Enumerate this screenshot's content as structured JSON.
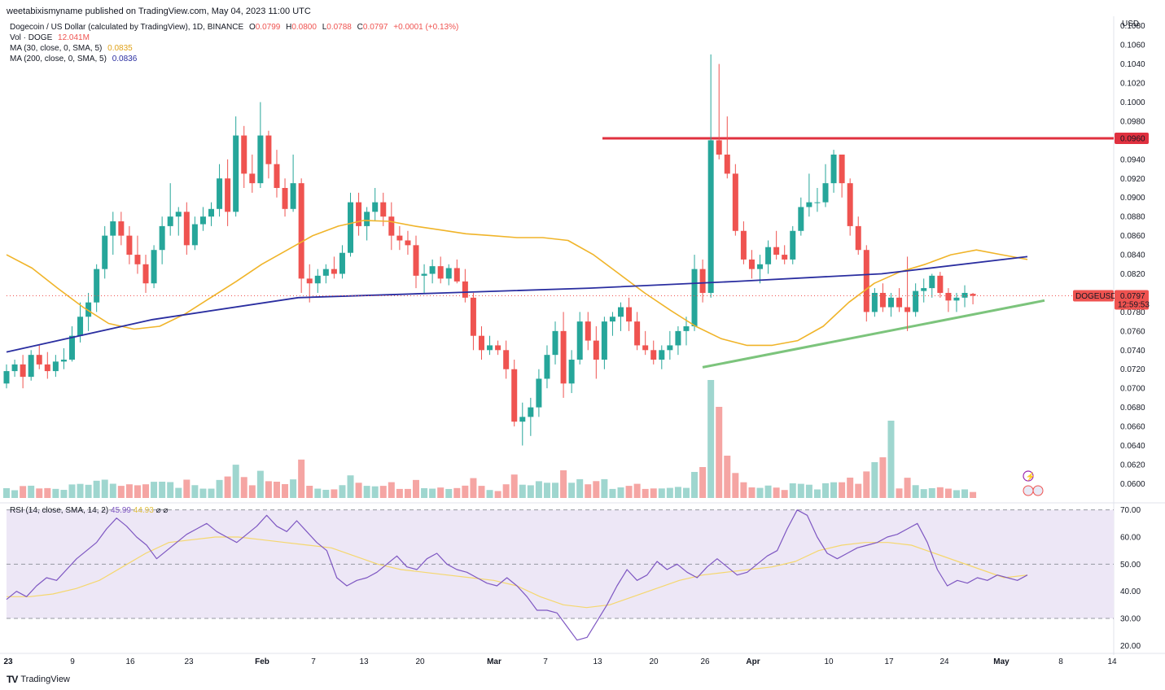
{
  "header": {
    "publisher_note": "weetabixismyname published on TradingView.com, May 04, 2023 11:00 UTC"
  },
  "legend": {
    "main_title": "Dogecoin / US Dollar (calculated by TradingView), 1D, BINANCE",
    "ohlc": {
      "o_label": "O",
      "o": "0.0799",
      "h_label": "H",
      "h": "0.0800",
      "l_label": "L",
      "l": "0.0788",
      "c_label": "C",
      "c": "0.0797",
      "change": "+0.0001 (+0.13%)"
    },
    "vol_label": "Vol · DOGE",
    "vol_value": "12.041M",
    "ma30_label": "MA (30, close, 0, SMA, 5)",
    "ma30_value": "0.0835",
    "ma200_label": "MA (200, close, 0, SMA, 5)",
    "ma200_value": "0.0836",
    "rsi_label": "RSI (14, close, SMA, 14, 2)",
    "rsi_value": "45.99",
    "rsi_ma_value": "44.93"
  },
  "price_axis": {
    "currency": "USD",
    "ticks": [
      "0.0600",
      "0.0620",
      "0.0640",
      "0.0660",
      "0.0680",
      "0.0700",
      "0.0720",
      "0.0740",
      "0.0760",
      "0.0780",
      "0.0800",
      "0.0820",
      "0.0840",
      "0.0860",
      "0.0880",
      "0.0900",
      "0.0920",
      "0.0940",
      "0.0960",
      "0.0980",
      "0.1000",
      "0.1020",
      "0.1040",
      "0.1060",
      "0.1080"
    ],
    "resistance_label": "0.0960",
    "symbol_label": "DOGEUSD",
    "last_price_label": "0.0797",
    "countdown_label": "12:59:53"
  },
  "rsi_axis": {
    "ticks": [
      "20.00",
      "30.00",
      "40.00",
      "50.00",
      "60.00",
      "70.00"
    ]
  },
  "time_axis": {
    "labels": [
      "23",
      "9",
      "16",
      "23",
      "Feb",
      "7",
      "13",
      "20",
      "Mar",
      "7",
      "13",
      "20",
      "26",
      "Apr",
      "10",
      "17",
      "24",
      "May",
      "8",
      "14"
    ]
  },
  "footer": {
    "brand": "TradingView"
  },
  "colors": {
    "up": "#26a69a",
    "down": "#ef5350",
    "ma30": "#f0b429",
    "ma200": "#2a2ea0",
    "resistance": "#e0303f",
    "support": "#7cc47c",
    "rsi": "#7e57c2",
    "rsi_ma": "#f5d76e",
    "rsi_band": "#ede7f6"
  },
  "chart_data": [
    {
      "type": "candlestick",
      "title": "Dogecoin / US Dollar (calculated by TradingView), 1D, BINANCE",
      "ylim": [
        0.0585,
        0.109
      ],
      "x_start": "2023-01-01",
      "ohlc": [
        [
          0.0705,
          0.0725,
          0.07,
          0.0718
        ],
        [
          0.0718,
          0.073,
          0.0712,
          0.0725
        ],
        [
          0.0725,
          0.0735,
          0.07,
          0.0712
        ],
        [
          0.0712,
          0.074,
          0.0708,
          0.0735
        ],
        [
          0.0735,
          0.0745,
          0.072,
          0.0725
        ],
        [
          0.0725,
          0.0738,
          0.071,
          0.0718
        ],
        [
          0.0718,
          0.0735,
          0.0712,
          0.0728
        ],
        [
          0.0728,
          0.0742,
          0.072,
          0.073
        ],
        [
          0.073,
          0.0765,
          0.0728,
          0.0755
        ],
        [
          0.0755,
          0.079,
          0.0748,
          0.0775
        ],
        [
          0.0775,
          0.08,
          0.076,
          0.079
        ],
        [
          0.079,
          0.083,
          0.078,
          0.0825
        ],
        [
          0.0825,
          0.087,
          0.0815,
          0.086
        ],
        [
          0.086,
          0.0885,
          0.084,
          0.0875
        ],
        [
          0.0875,
          0.0885,
          0.085,
          0.086
        ],
        [
          0.086,
          0.087,
          0.083,
          0.084
        ],
        [
          0.084,
          0.086,
          0.082,
          0.083
        ],
        [
          0.083,
          0.084,
          0.08,
          0.081
        ],
        [
          0.081,
          0.085,
          0.0805,
          0.0845
        ],
        [
          0.0845,
          0.088,
          0.083,
          0.087
        ],
        [
          0.087,
          0.0915,
          0.086,
          0.088
        ],
        [
          0.088,
          0.089,
          0.086,
          0.0885
        ],
        [
          0.0885,
          0.0895,
          0.084,
          0.085
        ],
        [
          0.085,
          0.088,
          0.0845,
          0.0872
        ],
        [
          0.0872,
          0.089,
          0.0865,
          0.088
        ],
        [
          0.088,
          0.0895,
          0.087,
          0.0888
        ],
        [
          0.0888,
          0.0935,
          0.088,
          0.092
        ],
        [
          0.092,
          0.094,
          0.087,
          0.0885
        ],
        [
          0.0885,
          0.0985,
          0.088,
          0.0965
        ],
        [
          0.0965,
          0.0975,
          0.091,
          0.0925
        ],
        [
          0.0925,
          0.0945,
          0.0905,
          0.0915
        ],
        [
          0.0915,
          0.1,
          0.091,
          0.0965
        ],
        [
          0.0965,
          0.097,
          0.092,
          0.0935
        ],
        [
          0.0935,
          0.095,
          0.09,
          0.091
        ],
        [
          0.091,
          0.092,
          0.088,
          0.0888
        ],
        [
          0.0888,
          0.0945,
          0.0885,
          0.0915
        ],
        [
          0.0915,
          0.092,
          0.08,
          0.0815
        ],
        [
          0.0815,
          0.083,
          0.079,
          0.081
        ],
        [
          0.081,
          0.0825,
          0.08,
          0.0818
        ],
        [
          0.0818,
          0.083,
          0.081,
          0.0825
        ],
        [
          0.0825,
          0.0838,
          0.0815,
          0.082
        ],
        [
          0.082,
          0.085,
          0.0815,
          0.0842
        ],
        [
          0.0842,
          0.0905,
          0.0838,
          0.0895
        ],
        [
          0.0895,
          0.0905,
          0.086,
          0.087
        ],
        [
          0.087,
          0.089,
          0.0855,
          0.0885
        ],
        [
          0.0885,
          0.091,
          0.0875,
          0.0895
        ],
        [
          0.0895,
          0.0905,
          0.087,
          0.088
        ],
        [
          0.088,
          0.0895,
          0.0845,
          0.086
        ],
        [
          0.086,
          0.087,
          0.0845,
          0.0855
        ],
        [
          0.0855,
          0.0865,
          0.084,
          0.085
        ],
        [
          0.085,
          0.086,
          0.0805,
          0.0818
        ],
        [
          0.0818,
          0.083,
          0.08,
          0.082
        ],
        [
          0.082,
          0.0835,
          0.081,
          0.0828
        ],
        [
          0.0828,
          0.0838,
          0.081,
          0.0815
        ],
        [
          0.0815,
          0.083,
          0.0808,
          0.0826
        ],
        [
          0.0826,
          0.0835,
          0.081,
          0.0812
        ],
        [
          0.0812,
          0.0825,
          0.079,
          0.0795
        ],
        [
          0.0795,
          0.08,
          0.074,
          0.0755
        ],
        [
          0.0755,
          0.0765,
          0.073,
          0.074
        ],
        [
          0.074,
          0.0755,
          0.0735,
          0.0745
        ],
        [
          0.0745,
          0.075,
          0.0735,
          0.074
        ],
        [
          0.074,
          0.075,
          0.071,
          0.072
        ],
        [
          0.072,
          0.073,
          0.066,
          0.0665
        ],
        [
          0.0665,
          0.0685,
          0.064,
          0.067
        ],
        [
          0.067,
          0.069,
          0.065,
          0.068
        ],
        [
          0.068,
          0.072,
          0.067,
          0.071
        ],
        [
          0.071,
          0.0745,
          0.07,
          0.0735
        ],
        [
          0.0735,
          0.077,
          0.0725,
          0.076
        ],
        [
          0.076,
          0.078,
          0.069,
          0.0705
        ],
        [
          0.0705,
          0.074,
          0.0695,
          0.073
        ],
        [
          0.073,
          0.078,
          0.0725,
          0.077
        ],
        [
          0.077,
          0.078,
          0.074,
          0.075
        ],
        [
          0.075,
          0.0765,
          0.071,
          0.073
        ],
        [
          0.073,
          0.0775,
          0.072,
          0.077
        ],
        [
          0.077,
          0.078,
          0.0755,
          0.0775
        ],
        [
          0.0775,
          0.079,
          0.076,
          0.0785
        ],
        [
          0.0785,
          0.0795,
          0.076,
          0.077
        ],
        [
          0.077,
          0.078,
          0.074,
          0.0745
        ],
        [
          0.0745,
          0.076,
          0.0735,
          0.074
        ],
        [
          0.074,
          0.075,
          0.0725,
          0.073
        ],
        [
          0.073,
          0.0745,
          0.072,
          0.074
        ],
        [
          0.074,
          0.076,
          0.073,
          0.0745
        ],
        [
          0.0745,
          0.0765,
          0.0735,
          0.076
        ],
        [
          0.076,
          0.0775,
          0.0745,
          0.0765
        ],
        [
          0.0765,
          0.084,
          0.076,
          0.0825
        ],
        [
          0.0825,
          0.0835,
          0.079,
          0.08
        ],
        [
          0.08,
          0.105,
          0.0795,
          0.096
        ],
        [
          0.096,
          0.104,
          0.094,
          0.0945
        ],
        [
          0.0945,
          0.0985,
          0.092,
          0.0925
        ],
        [
          0.0925,
          0.0935,
          0.086,
          0.0865
        ],
        [
          0.0865,
          0.0875,
          0.083,
          0.0835
        ],
        [
          0.0835,
          0.0845,
          0.0815,
          0.0825
        ],
        [
          0.0825,
          0.084,
          0.081,
          0.083
        ],
        [
          0.083,
          0.0855,
          0.082,
          0.0848
        ],
        [
          0.0848,
          0.0865,
          0.0835,
          0.084
        ],
        [
          0.084,
          0.085,
          0.083,
          0.0835
        ],
        [
          0.0835,
          0.087,
          0.083,
          0.0865
        ],
        [
          0.0865,
          0.09,
          0.086,
          0.089
        ],
        [
          0.089,
          0.0925,
          0.088,
          0.0895
        ],
        [
          0.0895,
          0.091,
          0.0885,
          0.0895
        ],
        [
          0.0895,
          0.0935,
          0.089,
          0.0915
        ],
        [
          0.0915,
          0.095,
          0.0905,
          0.0945
        ],
        [
          0.0945,
          0.0945,
          0.09,
          0.0915
        ],
        [
          0.0915,
          0.092,
          0.086,
          0.087
        ],
        [
          0.087,
          0.088,
          0.084,
          0.0845
        ],
        [
          0.0845,
          0.085,
          0.077,
          0.078
        ],
        [
          0.078,
          0.0805,
          0.0775,
          0.08
        ],
        [
          0.08,
          0.081,
          0.078,
          0.0785
        ],
        [
          0.0785,
          0.08,
          0.0775,
          0.0795
        ],
        [
          0.0795,
          0.0805,
          0.078,
          0.0785
        ],
        [
          0.0785,
          0.0838,
          0.076,
          0.078
        ],
        [
          0.078,
          0.081,
          0.0775,
          0.0802
        ],
        [
          0.0802,
          0.0815,
          0.079,
          0.0805
        ],
        [
          0.0805,
          0.082,
          0.0795,
          0.0818
        ],
        [
          0.0818,
          0.0822,
          0.0795,
          0.08
        ],
        [
          0.08,
          0.0805,
          0.078,
          0.0792
        ],
        [
          0.0792,
          0.08,
          0.078,
          0.0795
        ],
        [
          0.0795,
          0.0808,
          0.0785,
          0.08
        ],
        [
          0.0799,
          0.08,
          0.0788,
          0.0797
        ]
      ]
    },
    {
      "type": "line",
      "series": [
        {
          "name": "MA (30, close, 0, SMA, 5)",
          "values_note": "smoothed 30-day average",
          "values": [
            0.084,
            0.0826,
            0.0805,
            0.0785,
            0.0768,
            0.0762,
            0.0765,
            0.0778,
            0.0795,
            0.0812,
            0.083,
            0.0845,
            0.086,
            0.087,
            0.0876,
            0.0875,
            0.087,
            0.0866,
            0.0862,
            0.086,
            0.0858,
            0.0858,
            0.0855,
            0.084,
            0.082,
            0.08,
            0.0782,
            0.0765,
            0.0752,
            0.0745,
            0.0745,
            0.075,
            0.0765,
            0.079,
            0.081,
            0.0822,
            0.083,
            0.084,
            0.0845,
            0.084,
            0.0835
          ]
        },
        {
          "name": "MA (200, close, 0, SMA, 5)",
          "values": [
            0.0738,
            0.0772,
            0.0795,
            0.08,
            0.0805,
            0.0812,
            0.082,
            0.0838
          ]
        }
      ]
    },
    {
      "type": "bar",
      "title": "Vol · DOGE",
      "note": "relative volume heights per candle"
    },
    {
      "type": "line",
      "title": "RSI (14, close, SMA, 14, 2)",
      "ylim": [
        18,
        72
      ],
      "bands": [
        30,
        50,
        70
      ],
      "series": [
        {
          "name": "RSI",
          "values": [
            37,
            40,
            38,
            42,
            45,
            44,
            48,
            52,
            55,
            58,
            63,
            67,
            64,
            60,
            57,
            52,
            55,
            58,
            61,
            63,
            65,
            62,
            60,
            58,
            61,
            64,
            68,
            64,
            62,
            66,
            62,
            58,
            55,
            45,
            42,
            44,
            45,
            47,
            50,
            53,
            49,
            48,
            52,
            54,
            50,
            48,
            47,
            45,
            43,
            42,
            45,
            42,
            38,
            33,
            33,
            32,
            27,
            22,
            23,
            29,
            35,
            42,
            48,
            44,
            46,
            51,
            48,
            50,
            47,
            45,
            49,
            52,
            49,
            46,
            47,
            50,
            53,
            55,
            63,
            70,
            68,
            60,
            54,
            52,
            54,
            56,
            57,
            58,
            60,
            61,
            63,
            65,
            58,
            48,
            42,
            44,
            43,
            45,
            44,
            46,
            45,
            44,
            46
          ]
        },
        {
          "name": "RSI MA",
          "values": [
            38,
            38,
            39,
            41,
            44,
            49,
            54,
            58,
            59,
            60,
            60,
            59,
            58,
            57,
            56,
            53,
            50,
            48,
            47,
            46,
            45,
            44,
            42,
            38,
            35,
            34,
            35,
            38,
            41,
            44,
            46,
            47,
            48,
            49,
            51,
            55,
            57,
            58,
            58,
            57,
            54,
            51,
            48,
            45,
            46
          ]
        }
      ]
    }
  ]
}
